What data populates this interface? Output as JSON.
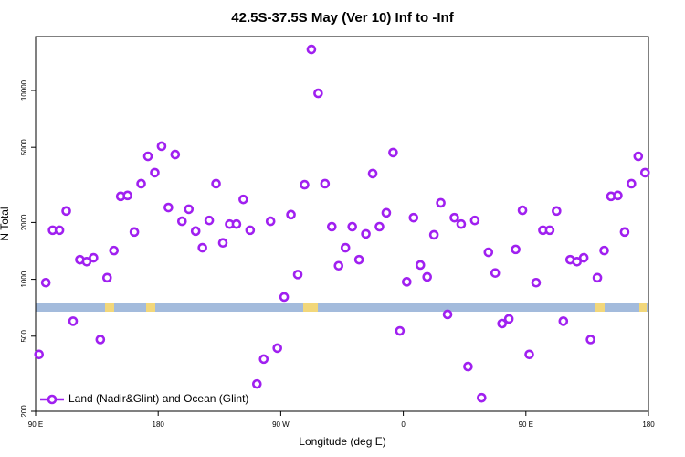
{
  "chart_data": {
    "type": "scatter",
    "title": "42.5S-37.5S May (Ver 10)   Inf to -Inf",
    "x_label": "Longitude (deg E)",
    "y_label": "N Total",
    "xlim": [
      90,
      540
    ],
    "xticks": [
      {
        "value": 90,
        "label": "90 E"
      },
      {
        "value": 180,
        "label": "180"
      },
      {
        "value": 270,
        "label": "90 W"
      },
      {
        "value": 360,
        "label": "0"
      },
      {
        "value": 450,
        "label": "90 E"
      },
      {
        "value": 540,
        "label": "180"
      }
    ],
    "ylim": [
      200,
      19300
    ],
    "log_y": true,
    "yticks": [
      200,
      500,
      1000,
      2000,
      5000,
      10000
    ],
    "legend": "bottom-left",
    "series": [
      {
        "name": "Land (Nadir&Glint) and Ocean (Glint)",
        "color": "#a020f0",
        "x": [
          92.5,
          97.5,
          102.5,
          107.5,
          112.5,
          117.5,
          122.5,
          127.5,
          132.5,
          137.5,
          142.5,
          147.5,
          152.5,
          157.5,
          162.5,
          167.5,
          172.5,
          177.5,
          182.5,
          187.5,
          192.5,
          197.5,
          202.5,
          207.5,
          212.5,
          217.5,
          222.5,
          227.5,
          232.5,
          237.5,
          242.5,
          247.5,
          252.5,
          257.5,
          262.5,
          267.5,
          272.5,
          277.5,
          282.5,
          287.5,
          292.5,
          297.5,
          302.5,
          307.5,
          312.5,
          317.5,
          322.5,
          327.5,
          332.5,
          337.5,
          342.5,
          347.5,
          352.5,
          357.5,
          362.5,
          367.5,
          372.5,
          377.5,
          382.5,
          387.5,
          392.5,
          397.5,
          402.5,
          407.5,
          412.5,
          417.5,
          422.5,
          427.5,
          432.5,
          437.5,
          442.5,
          447.5,
          452.5,
          457.5,
          462.5,
          467.5,
          472.5,
          477.5,
          482.5,
          487.5,
          492.5,
          497.5,
          502.5,
          507.5,
          512.5,
          517.5,
          522.5,
          527.5,
          532.5,
          537.5
        ],
        "values": [
          400,
          960,
          1820,
          1820,
          2300,
          600,
          1270,
          1240,
          1300,
          480,
          1020,
          1420,
          2750,
          2780,
          1780,
          3210,
          4480,
          3670,
          5070,
          2400,
          4580,
          2030,
          2350,
          1800,
          1470,
          2050,
          3210,
          1560,
          1960,
          1960,
          2650,
          1820,
          279,
          378,
          2030,
          432,
          806,
          2200,
          1060,
          3170,
          16500,
          9660,
          3210,
          1900,
          1180,
          1470,
          1900,
          1270,
          1740,
          3630,
          1900,
          2250,
          4690,
          533,
          970,
          2120,
          1190,
          1030,
          1720,
          2540,
          652,
          2120,
          1960,
          345,
          2050,
          236,
          1390,
          1080,
          583,
          617,
          1440,
          2320,
          400,
          960,
          1820,
          1820,
          2300,
          600,
          1270,
          1240,
          1300,
          480,
          1020,
          1420,
          2750,
          2780,
          1780,
          3210,
          4480,
          3670
        ]
      }
    ]
  }
}
